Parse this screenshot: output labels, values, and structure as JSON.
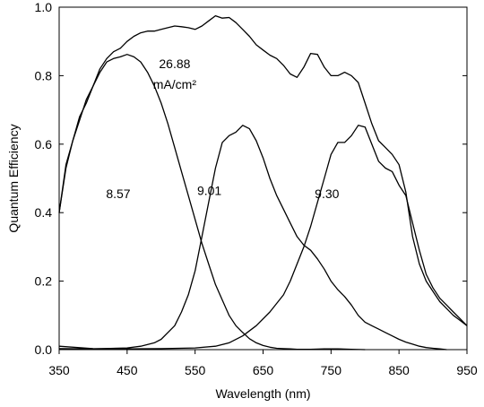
{
  "chart_data": {
    "type": "line",
    "title": "",
    "xlabel": "Wavelength (nm)",
    "ylabel": "Quantum Efficiency",
    "xlim": [
      350,
      950
    ],
    "ylim": [
      0,
      1.0
    ],
    "xticks": [
      350,
      450,
      550,
      650,
      750,
      850,
      950
    ],
    "yticks": [
      0.0,
      0.2,
      0.4,
      0.6,
      0.8,
      1.0
    ],
    "ytick_labels": [
      "0.0",
      "0.2",
      "0.4",
      "0.6",
      "0.8",
      "1.0"
    ],
    "grid": false,
    "legend": "none",
    "annotations": [
      {
        "text": "26.88",
        "x": 520,
        "y": 0.835
      },
      {
        "text": "mA/cm²",
        "x": 520,
        "y": 0.775
      },
      {
        "text": "8.57",
        "x": 437,
        "y": 0.455
      },
      {
        "text": "9.01",
        "x": 571,
        "y": 0.465
      },
      {
        "text": "9.30",
        "x": 744,
        "y": 0.455
      }
    ],
    "series": [
      {
        "x": [
          350,
          360,
          370,
          380,
          390,
          400,
          410,
          420,
          430,
          440,
          450,
          460,
          470,
          480,
          490,
          500,
          510,
          520,
          530,
          540,
          550,
          560,
          570,
          580,
          590,
          600,
          610,
          620,
          630,
          640,
          650,
          660,
          670,
          680,
          690,
          700,
          710,
          720,
          730,
          740,
          750,
          760,
          770,
          780,
          790,
          800,
          810,
          820,
          830,
          840,
          850,
          860,
          870,
          880,
          890,
          900,
          910,
          920,
          930,
          940,
          950
        ],
        "values": [
          0.4,
          0.54,
          0.61,
          0.68,
          0.72,
          0.77,
          0.82,
          0.85,
          0.87,
          0.88,
          0.9,
          0.915,
          0.925,
          0.93,
          0.93,
          0.935,
          0.94,
          0.945,
          0.943,
          0.94,
          0.935,
          0.945,
          0.96,
          0.975,
          0.968,
          0.97,
          0.955,
          0.935,
          0.915,
          0.89,
          0.875,
          0.86,
          0.85,
          0.83,
          0.805,
          0.795,
          0.825,
          0.865,
          0.862,
          0.825,
          0.8,
          0.8,
          0.81,
          0.8,
          0.78,
          0.72,
          0.66,
          0.61,
          0.59,
          0.57,
          0.54,
          0.46,
          0.33,
          0.25,
          0.2,
          0.17,
          0.14,
          0.12,
          0.1,
          0.085,
          0.07
        ]
      },
      {
        "x": [
          350,
          360,
          370,
          380,
          390,
          400,
          410,
          420,
          430,
          440,
          450,
          460,
          470,
          480,
          490,
          500,
          510,
          520,
          530,
          540,
          550,
          560,
          570,
          580,
          590,
          600,
          610,
          620,
          630,
          640,
          650,
          660,
          670,
          680,
          690,
          700,
          720,
          740,
          760,
          780,
          800
        ],
        "values": [
          0.4,
          0.53,
          0.61,
          0.67,
          0.73,
          0.77,
          0.81,
          0.84,
          0.85,
          0.855,
          0.862,
          0.855,
          0.84,
          0.81,
          0.77,
          0.72,
          0.66,
          0.59,
          0.52,
          0.45,
          0.38,
          0.31,
          0.25,
          0.19,
          0.145,
          0.1,
          0.07,
          0.05,
          0.032,
          0.02,
          0.012,
          0.007,
          0.004,
          0.003,
          0.002,
          0.001,
          0.001,
          0.002,
          0.002,
          0.001,
          0.0
        ]
      },
      {
        "x": [
          350,
          400,
          450,
          470,
          490,
          500,
          510,
          520,
          530,
          540,
          550,
          560,
          570,
          580,
          590,
          600,
          610,
          620,
          630,
          640,
          650,
          660,
          670,
          680,
          690,
          700,
          710,
          720,
          730,
          740,
          750,
          760,
          770,
          780,
          790,
          800,
          810,
          820,
          830,
          840,
          850,
          860,
          870,
          880,
          890,
          900,
          910,
          920
        ],
        "values": [
          0.003,
          0.002,
          0.005,
          0.01,
          0.02,
          0.03,
          0.05,
          0.07,
          0.11,
          0.16,
          0.23,
          0.33,
          0.43,
          0.53,
          0.605,
          0.625,
          0.635,
          0.655,
          0.645,
          0.61,
          0.56,
          0.5,
          0.45,
          0.41,
          0.37,
          0.33,
          0.305,
          0.29,
          0.265,
          0.235,
          0.2,
          0.175,
          0.155,
          0.13,
          0.1,
          0.08,
          0.07,
          0.06,
          0.05,
          0.04,
          0.03,
          0.022,
          0.016,
          0.01,
          0.006,
          0.004,
          0.002,
          0.0
        ]
      },
      {
        "x": [
          350,
          400,
          450,
          500,
          550,
          580,
          600,
          620,
          640,
          660,
          680,
          690,
          700,
          710,
          720,
          730,
          740,
          750,
          760,
          770,
          780,
          790,
          800,
          810,
          820,
          830,
          840,
          850,
          860,
          870,
          880,
          890,
          900,
          910,
          920,
          930,
          940,
          950
        ],
        "values": [
          0.01,
          0.003,
          0.002,
          0.003,
          0.005,
          0.01,
          0.02,
          0.04,
          0.07,
          0.11,
          0.16,
          0.2,
          0.25,
          0.3,
          0.36,
          0.43,
          0.5,
          0.57,
          0.605,
          0.605,
          0.625,
          0.655,
          0.65,
          0.6,
          0.55,
          0.53,
          0.52,
          0.48,
          0.45,
          0.37,
          0.29,
          0.22,
          0.18,
          0.15,
          0.13,
          0.11,
          0.09,
          0.07
        ]
      }
    ]
  }
}
